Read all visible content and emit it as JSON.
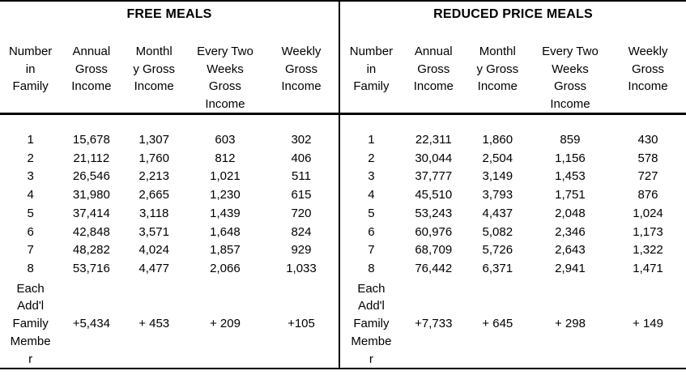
{
  "tables": [
    {
      "title": "FREE MEALS",
      "col_headers": [
        "Number\nin\nFamily",
        "Annual\nGross\nIncome",
        "Monthl\ny Gross\nIncome",
        "Every Two\nWeeks\nGross\nIncome",
        "Weekly\nGross\nIncome"
      ],
      "rows": [
        [
          "1",
          "15,678",
          "1,307",
          "603",
          "302"
        ],
        [
          "2",
          "21,112",
          "1,760",
          "812",
          "406"
        ],
        [
          "3",
          "26,546",
          "2,213",
          "1,021",
          "511"
        ],
        [
          "4",
          "31,980",
          "2,665",
          "1,230",
          "615"
        ],
        [
          "5",
          "37,414",
          "3,118",
          "1,439",
          "720"
        ],
        [
          "6",
          "42,848",
          "3,571",
          "1,648",
          "824"
        ],
        [
          "7",
          "48,282",
          "4,024",
          "1,857",
          "929"
        ],
        [
          "8",
          "53,716",
          "4,477",
          "2,066",
          "1,033"
        ]
      ],
      "additional": {
        "label": "Each\nAdd'l\nFamily\nMembe\nr",
        "values": [
          "+5,434",
          "+ 453",
          "+ 209",
          "+105"
        ]
      }
    },
    {
      "title": "REDUCED PRICE MEALS",
      "col_headers": [
        "Number\nin\nFamily",
        "Annual\nGross\nIncome",
        "Monthl\ny Gross\nIncome",
        "Every Two\nWeeks\nGross\nIncome",
        "Weekly\nGross\nIncome"
      ],
      "rows": [
        [
          "1",
          "22,311",
          "1,860",
          "859",
          "430"
        ],
        [
          "2",
          "30,044",
          "2,504",
          "1,156",
          "578"
        ],
        [
          "3",
          "37,777",
          "3,149",
          "1,453",
          "727"
        ],
        [
          "4",
          "45,510",
          "3,793",
          "1,751",
          "876"
        ],
        [
          "5",
          "53,243",
          "4,437",
          "2,048",
          "1,024"
        ],
        [
          "6",
          "60,976",
          "5,082",
          "2,346",
          "1,173"
        ],
        [
          "7",
          "68,709",
          "5,726",
          "2,643",
          "1,322"
        ],
        [
          "8",
          "76,442",
          "6,371",
          "2,941",
          "1,471"
        ]
      ],
      "additional": {
        "label": "Each\nAdd'l\nFamily\nMembe\nr",
        "values": [
          "+7,733",
          "+ 645",
          "+ 298",
          "+ 149"
        ]
      }
    }
  ],
  "colors": {
    "text": "#000000",
    "background": "#ffffff",
    "rule": "#000000"
  }
}
